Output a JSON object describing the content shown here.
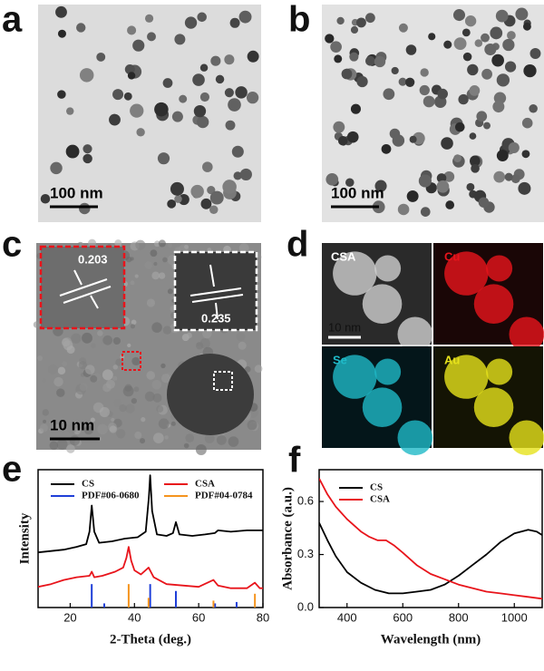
{
  "panels": [
    {
      "letter": "a",
      "scale_bar": "100 nm"
    },
    {
      "letter": "b",
      "scale_bar": "100 nm"
    },
    {
      "letter": "c",
      "scale_bar": "10 nm",
      "insets": [
        "0.203",
        "0.235"
      ]
    },
    {
      "letter": "d",
      "maps": [
        "CSA",
        "Cu",
        "Se",
        "Au"
      ],
      "scale_bar": "10 nm"
    },
    {
      "letter": "e"
    },
    {
      "letter": "f"
    }
  ],
  "chart_data": [
    {
      "type": "line",
      "xlabel": "2-Theta (deg.)",
      "ylabel": "Intensity",
      "xlim": [
        10,
        80
      ],
      "xticks": [
        20,
        40,
        60,
        80
      ],
      "ylim": [
        0,
        1
      ],
      "legend_columns": 2,
      "series": [
        {
          "name": "CS",
          "color": "#000000",
          "kind": "line",
          "x": [
            10,
            14,
            18,
            22,
            25,
            26,
            26.7,
            27.5,
            29,
            33,
            37,
            41,
            43.5,
            44.5,
            44.9,
            45.5,
            47,
            50,
            52,
            52.9,
            54,
            58,
            62,
            65,
            66,
            70,
            75,
            80
          ],
          "values": [
            0.4,
            0.41,
            0.42,
            0.44,
            0.46,
            0.55,
            0.74,
            0.55,
            0.47,
            0.48,
            0.5,
            0.51,
            0.55,
            0.8,
            0.96,
            0.7,
            0.53,
            0.52,
            0.54,
            0.62,
            0.53,
            0.52,
            0.53,
            0.54,
            0.56,
            0.55,
            0.56,
            0.56
          ]
        },
        {
          "name": "CSA",
          "color": "#e8141b",
          "kind": "line",
          "x": [
            10,
            14,
            18,
            22,
            26,
            26.7,
            27.5,
            30,
            34,
            36.5,
            37.5,
            38.2,
            39,
            40,
            42,
            44.4,
            46,
            50,
            55,
            60,
            64.6,
            66,
            70,
            75,
            77.5,
            79,
            80
          ],
          "values": [
            0.15,
            0.17,
            0.2,
            0.22,
            0.23,
            0.26,
            0.22,
            0.23,
            0.26,
            0.29,
            0.36,
            0.44,
            0.34,
            0.27,
            0.24,
            0.29,
            0.22,
            0.17,
            0.16,
            0.15,
            0.2,
            0.16,
            0.14,
            0.14,
            0.18,
            0.14,
            0.14
          ]
        },
        {
          "name": "PDF#06-0680",
          "color": "#1f3fd8",
          "kind": "stick",
          "x": [
            26.7,
            30.6,
            44.9,
            52.9,
            65.1,
            71.8
          ],
          "values": [
            0.17,
            0.03,
            0.17,
            0.12,
            0.03,
            0.04
          ]
        },
        {
          "name": "PDF#04-0784",
          "color": "#f5941e",
          "kind": "stick",
          "x": [
            38.2,
            44.4,
            64.6,
            77.5
          ],
          "values": [
            0.17,
            0.07,
            0.05,
            0.1
          ]
        }
      ]
    },
    {
      "type": "line",
      "xlabel": "Wavelength (nm)",
      "ylabel": "Absorbance (a.u.)",
      "xlim": [
        300,
        1100
      ],
      "xticks": [
        400,
        600,
        800,
        1000
      ],
      "ylim": [
        0,
        0.78
      ],
      "yticks": [
        {
          "value": 0,
          "label": "0.0"
        },
        {
          "value": 0.3,
          "label": "0.3"
        },
        {
          "value": 0.6,
          "label": "0.6"
        }
      ],
      "legend_columns": 1,
      "series": [
        {
          "name": "CS",
          "color": "#000000",
          "kind": "line",
          "x": [
            300,
            330,
            360,
            400,
            450,
            500,
            550,
            600,
            650,
            700,
            750,
            800,
            850,
            900,
            950,
            1000,
            1050,
            1080,
            1100
          ],
          "values": [
            0.48,
            0.38,
            0.29,
            0.2,
            0.14,
            0.1,
            0.08,
            0.08,
            0.09,
            0.1,
            0.13,
            0.18,
            0.24,
            0.3,
            0.37,
            0.42,
            0.44,
            0.43,
            0.41
          ]
        },
        {
          "name": "CSA",
          "color": "#e8141b",
          "kind": "line",
          "x": [
            300,
            330,
            360,
            400,
            450,
            480,
            510,
            540,
            570,
            600,
            650,
            700,
            750,
            800,
            850,
            900,
            950,
            1000,
            1050,
            1100
          ],
          "values": [
            0.73,
            0.64,
            0.57,
            0.5,
            0.43,
            0.4,
            0.38,
            0.38,
            0.35,
            0.31,
            0.24,
            0.19,
            0.16,
            0.13,
            0.11,
            0.09,
            0.08,
            0.07,
            0.06,
            0.05
          ]
        }
      ]
    }
  ]
}
